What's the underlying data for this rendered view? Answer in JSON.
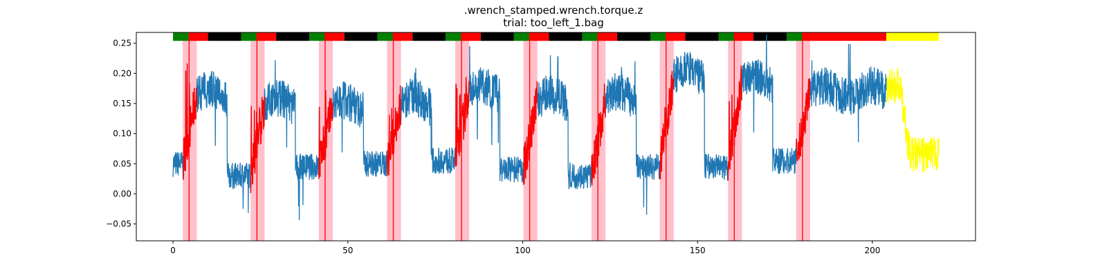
{
  "chart_data": {
    "type": "line",
    "title": ".wrench_stamped.wrench.torque.z",
    "subtitle": "trial: too_left_1.bag",
    "xlabel": "",
    "ylabel": "",
    "xlim": [
      -10.5,
      229.5
    ],
    "ylim": [
      -0.078,
      0.268
    ],
    "xticks": [
      0,
      50,
      100,
      150,
      200
    ],
    "yticks": [
      -0.05,
      0.0,
      0.05,
      0.1,
      0.15,
      0.2,
      0.25
    ],
    "ytick_labels": [
      "−0.05",
      "0.00",
      "0.05",
      "0.10",
      "0.15",
      "0.20",
      "0.25"
    ],
    "grid": false,
    "legend": "none",
    "colors": {
      "main": "#1f77b4",
      "highlight": "#ff0000",
      "tail": "#ffff00",
      "band": "#ffc0cb",
      "vline": "#ff0000",
      "bar_green": "#008000",
      "bar_red": "#ff0000",
      "bar_black": "#000000",
      "bar_yellow": "#ffff00"
    },
    "status_bar": {
      "y_bottom": 0.254,
      "y_top": 0.268,
      "segments": [
        {
          "x0": 0.0,
          "x1": 4.5,
          "color": "green"
        },
        {
          "x0": 4.5,
          "x1": 10.0,
          "color": "red"
        },
        {
          "x0": 10.0,
          "x1": 19.5,
          "color": "black"
        },
        {
          "x0": 19.5,
          "x1": 24.0,
          "color": "green"
        },
        {
          "x0": 24.0,
          "x1": 29.5,
          "color": "red"
        },
        {
          "x0": 29.5,
          "x1": 39.0,
          "color": "black"
        },
        {
          "x0": 39.0,
          "x1": 43.5,
          "color": "green"
        },
        {
          "x0": 43.5,
          "x1": 49.0,
          "color": "red"
        },
        {
          "x0": 49.0,
          "x1": 58.5,
          "color": "black"
        },
        {
          "x0": 58.5,
          "x1": 63.0,
          "color": "green"
        },
        {
          "x0": 63.0,
          "x1": 68.5,
          "color": "red"
        },
        {
          "x0": 68.5,
          "x1": 78.0,
          "color": "black"
        },
        {
          "x0": 78.0,
          "x1": 82.5,
          "color": "green"
        },
        {
          "x0": 82.5,
          "x1": 88.0,
          "color": "red"
        },
        {
          "x0": 88.0,
          "x1": 97.5,
          "color": "black"
        },
        {
          "x0": 97.5,
          "x1": 102.0,
          "color": "green"
        },
        {
          "x0": 102.0,
          "x1": 107.5,
          "color": "red"
        },
        {
          "x0": 107.5,
          "x1": 117.0,
          "color": "black"
        },
        {
          "x0": 117.0,
          "x1": 121.5,
          "color": "green"
        },
        {
          "x0": 121.5,
          "x1": 127.0,
          "color": "red"
        },
        {
          "x0": 127.0,
          "x1": 136.5,
          "color": "black"
        },
        {
          "x0": 136.5,
          "x1": 141.0,
          "color": "green"
        },
        {
          "x0": 141.0,
          "x1": 146.5,
          "color": "red"
        },
        {
          "x0": 146.5,
          "x1": 156.0,
          "color": "black"
        },
        {
          "x0": 156.0,
          "x1": 160.5,
          "color": "green"
        },
        {
          "x0": 160.5,
          "x1": 166.0,
          "color": "red"
        },
        {
          "x0": 166.0,
          "x1": 175.5,
          "color": "black"
        },
        {
          "x0": 175.5,
          "x1": 180.0,
          "color": "green"
        },
        {
          "x0": 180.0,
          "x1": 204.0,
          "color": "red"
        },
        {
          "x0": 204.0,
          "x1": 219.0,
          "color": "yellow"
        }
      ]
    },
    "bands": [
      {
        "x0": 2.8,
        "x1": 6.8,
        "event_x": 4.6
      },
      {
        "x0": 22.2,
        "x1": 26.2,
        "event_x": 24.0
      },
      {
        "x0": 41.7,
        "x1": 45.7,
        "event_x": 43.5
      },
      {
        "x0": 61.2,
        "x1": 65.2,
        "event_x": 63.0
      },
      {
        "x0": 80.7,
        "x1": 84.7,
        "event_x": 82.5
      },
      {
        "x0": 100.2,
        "x1": 104.2,
        "event_x": 102.0
      },
      {
        "x0": 119.7,
        "x1": 123.7,
        "event_x": 121.5
      },
      {
        "x0": 139.2,
        "x1": 143.2,
        "event_x": 141.0
      },
      {
        "x0": 158.7,
        "x1": 162.7,
        "event_x": 160.5
      },
      {
        "x0": 178.2,
        "x1": 182.2,
        "event_x": 180.0
      }
    ],
    "cycles": [
      {
        "x0": 0.0,
        "low": 0.05,
        "peak": 0.14,
        "hi_x1": 15.5,
        "hi_level": 0.165
      },
      {
        "x0": 15.5,
        "low": 0.03,
        "peak": 0.09,
        "hi_x1": 35.0,
        "hi_level": 0.15
      },
      {
        "x0": 35.0,
        "low": 0.045,
        "peak": 0.1,
        "hi_x1": 54.5,
        "hi_level": 0.145
      },
      {
        "x0": 54.5,
        "low": 0.05,
        "peak": 0.08,
        "hi_x1": 74.0,
        "hi_level": 0.15
      },
      {
        "x0": 74.0,
        "low": 0.055,
        "peak": 0.12,
        "hi_x1": 93.5,
        "hi_level": 0.17
      },
      {
        "x0": 93.5,
        "low": 0.04,
        "peak": 0.09,
        "hi_x1": 113.0,
        "hi_level": 0.155
      },
      {
        "x0": 113.0,
        "low": 0.03,
        "peak": 0.1,
        "hi_x1": 132.5,
        "hi_level": 0.16
      },
      {
        "x0": 132.5,
        "low": 0.045,
        "peak": 0.1,
        "hi_x1": 152.0,
        "hi_level": 0.195
      },
      {
        "x0": 152.0,
        "low": 0.045,
        "peak": 0.09,
        "hi_x1": 171.5,
        "hi_level": 0.185
      },
      {
        "x0": 171.5,
        "low": 0.055,
        "peak": 0.1,
        "hi_x1": 204.0,
        "hi_level": 0.17
      }
    ],
    "tail": {
      "x0": 204.0,
      "x1": 219.0,
      "start": 0.18,
      "end": 0.065
    }
  }
}
